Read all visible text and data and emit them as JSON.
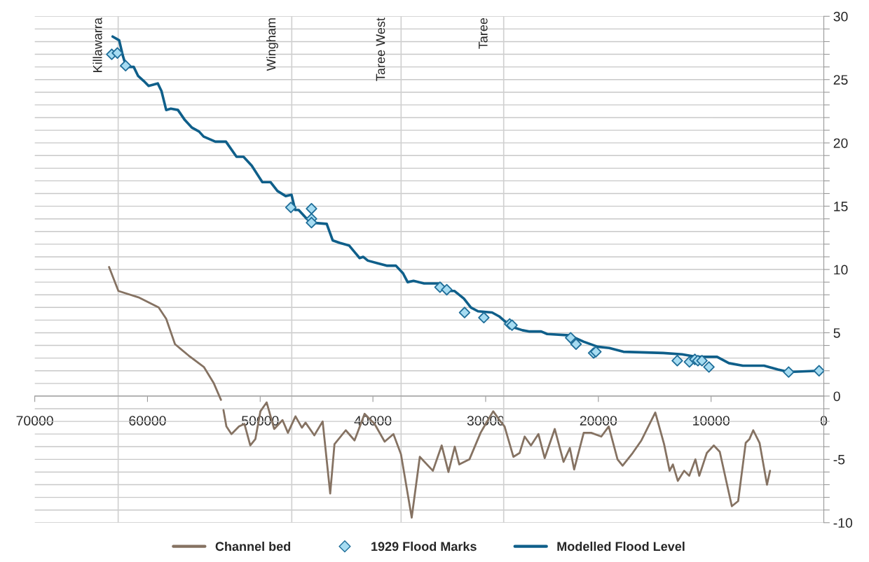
{
  "chart_data": {
    "type": "line",
    "xlim": [
      70000,
      0
    ],
    "xticks": [
      70000,
      60000,
      50000,
      40000,
      30000,
      20000,
      10000,
      0
    ],
    "ylim": [
      -10,
      30
    ],
    "yticks": [
      {
        "value": -10,
        "label": "-10"
      },
      {
        "value": -9,
        "label": null
      },
      {
        "value": -8,
        "label": null
      },
      {
        "value": -7,
        "label": null
      },
      {
        "value": -6,
        "label": null
      },
      {
        "value": -5,
        "label": "-5"
      },
      {
        "value": -4,
        "label": null
      },
      {
        "value": -3,
        "label": null
      },
      {
        "value": -2,
        "label": null
      },
      {
        "value": -1,
        "label": null
      },
      {
        "value": 0,
        "label": "0"
      },
      {
        "value": 1,
        "label": null
      },
      {
        "value": 2,
        "label": null
      },
      {
        "value": 3,
        "label": null
      },
      {
        "value": 4,
        "label": null
      },
      {
        "value": 5,
        "label": "5"
      },
      {
        "value": 6,
        "label": null
      },
      {
        "value": 7,
        "label": null
      },
      {
        "value": 8,
        "label": null
      },
      {
        "value": 9,
        "label": null
      },
      {
        "value": 10,
        "label": "10"
      },
      {
        "value": 11,
        "label": null
      },
      {
        "value": 12,
        "label": null
      },
      {
        "value": 13,
        "label": null
      },
      {
        "value": 14,
        "label": null
      },
      {
        "value": 15,
        "label": "15"
      },
      {
        "value": 16,
        "label": null
      },
      {
        "value": 17,
        "label": null
      },
      {
        "value": 18,
        "label": null
      },
      {
        "value": 19,
        "label": null
      },
      {
        "value": 20,
        "label": "20"
      },
      {
        "value": 21,
        "label": null
      },
      {
        "value": 22,
        "label": null
      },
      {
        "value": 23,
        "label": null
      },
      {
        "value": 24,
        "label": null
      },
      {
        "value": 25,
        "label": "25"
      },
      {
        "value": 26,
        "label": null
      },
      {
        "value": 27,
        "label": null
      },
      {
        "value": 28,
        "label": null
      },
      {
        "value": 29,
        "label": null
      },
      {
        "value": 30,
        "label": "30"
      }
    ],
    "grid": "y",
    "legend": "bottom",
    "ref_lines": [
      {
        "axis": "x",
        "value": 62600,
        "label": "Killawarra",
        "color": "#d0d0d0"
      },
      {
        "axis": "x",
        "value": 47200,
        "label": "Wingham",
        "color": "#d0d0d0"
      },
      {
        "axis": "x",
        "value": 37500,
        "label": "Taree West",
        "color": "#d0d0d0"
      },
      {
        "axis": "x",
        "value": 28400,
        "label": "Taree",
        "color": "#d0d0d0"
      }
    ],
    "series": [
      {
        "name": "Channel bed",
        "color": "#857262",
        "marker": "none",
        "x": [
          63410,
          62580,
          60800,
          59010,
          58340,
          57560,
          56350,
          55000,
          54110,
          53480,
          53370,
          53260,
          53000,
          52550,
          51880,
          51400,
          50880,
          50430,
          49980,
          49430,
          48760,
          48020,
          47540,
          46870,
          46300,
          45980,
          45200,
          44460,
          43790,
          43410,
          42410,
          41630,
          40740,
          39850,
          38960,
          38180,
          37510,
          36560,
          35840,
          34680,
          33900,
          33300,
          32740,
          32340,
          31440,
          30450,
          30000,
          29330,
          28770,
          28320,
          27540,
          26990,
          26540,
          25980,
          25320,
          24760,
          23870,
          23090,
          22530,
          22150,
          21300,
          20640,
          19740,
          19080,
          18300,
          17850,
          16960,
          16180,
          14950,
          14170,
          13680,
          13390,
          12950,
          12390,
          11940,
          11390,
          11050,
          10380,
          9760,
          9230,
          8160,
          7600,
          6930,
          6600,
          6260,
          5700,
          5040,
          4770
        ],
        "values": [
          10.2,
          8.3,
          7.8,
          7.0,
          6.1,
          4.1,
          3.2,
          2.3,
          1.0,
          -0.3,
          null,
          -1.1,
          -2.4,
          -3.0,
          -2.4,
          -2.2,
          -3.9,
          -3.4,
          -1.2,
          -0.5,
          -2.6,
          -1.9,
          -2.9,
          -1.6,
          -2.5,
          -2.1,
          -3.1,
          -2.0,
          -7.7,
          -3.8,
          -2.7,
          -3.5,
          -1.4,
          -2.2,
          -3.6,
          -3.0,
          -4.6,
          -9.6,
          -4.8,
          -5.9,
          -3.9,
          -6.0,
          -4.0,
          -5.4,
          -5.0,
          -2.9,
          -2.2,
          -1.2,
          -1.9,
          -2.4,
          -4.8,
          -4.5,
          -3.2,
          -3.9,
          -3.0,
          -4.9,
          -2.6,
          -5.2,
          -4.1,
          -5.8,
          -2.9,
          -2.9,
          -3.2,
          -2.4,
          -5.0,
          -5.5,
          -4.5,
          -3.5,
          -1.3,
          -3.8,
          -5.9,
          -5.4,
          -6.7,
          -5.9,
          -6.3,
          -5.0,
          -6.3,
          -4.5,
          -3.9,
          -4.4,
          -8.7,
          -8.3,
          -3.7,
          -3.4,
          -2.7,
          -3.7,
          -7.0,
          -5.9
        ]
      },
      {
        "name": "1929 Flood Marks",
        "type": "scatter",
        "color": "#a6dcf2",
        "marker": "diamond",
        "x": [
          63170,
          62670,
          61940,
          47280,
          45450,
          45450,
          45450,
          34050,
          33450,
          31870,
          30160,
          27870,
          27660,
          22460,
          21980,
          20420,
          20220,
          13000,
          11920,
          11440,
          11170,
          10810,
          10190,
          3120,
          420
        ],
        "values": [
          27.0,
          27.1,
          26.1,
          14.9,
          14.8,
          14.0,
          13.7,
          8.6,
          8.4,
          6.6,
          6.2,
          5.7,
          5.6,
          4.6,
          4.1,
          3.4,
          3.5,
          2.8,
          2.7,
          2.9,
          2.8,
          2.8,
          2.3,
          1.9,
          2.0
        ]
      },
      {
        "name": "Modelled Flood Level",
        "color": "#0f5f8a",
        "marker": "none",
        "x": [
          63090,
          62510,
          62190,
          61880,
          61590,
          61220,
          60840,
          60340,
          59900,
          59090,
          58760,
          58340,
          57930,
          57300,
          56680,
          56050,
          55430,
          55020,
          53980,
          53040,
          52100,
          51480,
          50750,
          49810,
          49090,
          48470,
          47740,
          47220,
          46900,
          46590,
          45860,
          45460,
          44100,
          43570,
          42950,
          42120,
          41180,
          40870,
          40450,
          39620,
          38790,
          37960,
          37330,
          36920,
          36400,
          35460,
          34010,
          33380,
          32760,
          31930,
          31310,
          30680,
          29430,
          28810,
          27770,
          26730,
          26100,
          25070,
          24540,
          22570,
          21320,
          20070,
          19030,
          17780,
          14250,
          12580,
          11330,
          9470,
          8420,
          7180,
          5300,
          4060,
          3120,
          420
        ],
        "values": [
          28.4,
          28.1,
          26.9,
          26.0,
          26.0,
          26.0,
          25.3,
          24.9,
          24.5,
          24.7,
          24.1,
          22.6,
          22.7,
          22.6,
          21.8,
          21.2,
          20.9,
          20.5,
          20.1,
          20.1,
          18.9,
          18.9,
          18.2,
          16.9,
          16.9,
          16.2,
          15.8,
          15.9,
          14.7,
          14.7,
          14.0,
          13.7,
          13.6,
          12.3,
          12.1,
          11.9,
          10.9,
          11.0,
          10.7,
          10.5,
          10.3,
          10.3,
          9.7,
          9.0,
          9.1,
          8.9,
          8.9,
          8.3,
          8.3,
          7.7,
          7.0,
          6.7,
          6.6,
          6.3,
          5.5,
          5.2,
          5.1,
          5.1,
          4.9,
          4.8,
          4.3,
          3.9,
          3.8,
          3.5,
          3.4,
          3.3,
          3.1,
          3.1,
          2.6,
          2.4,
          2.4,
          2.1,
          1.9,
          2.0
        ]
      }
    ]
  }
}
